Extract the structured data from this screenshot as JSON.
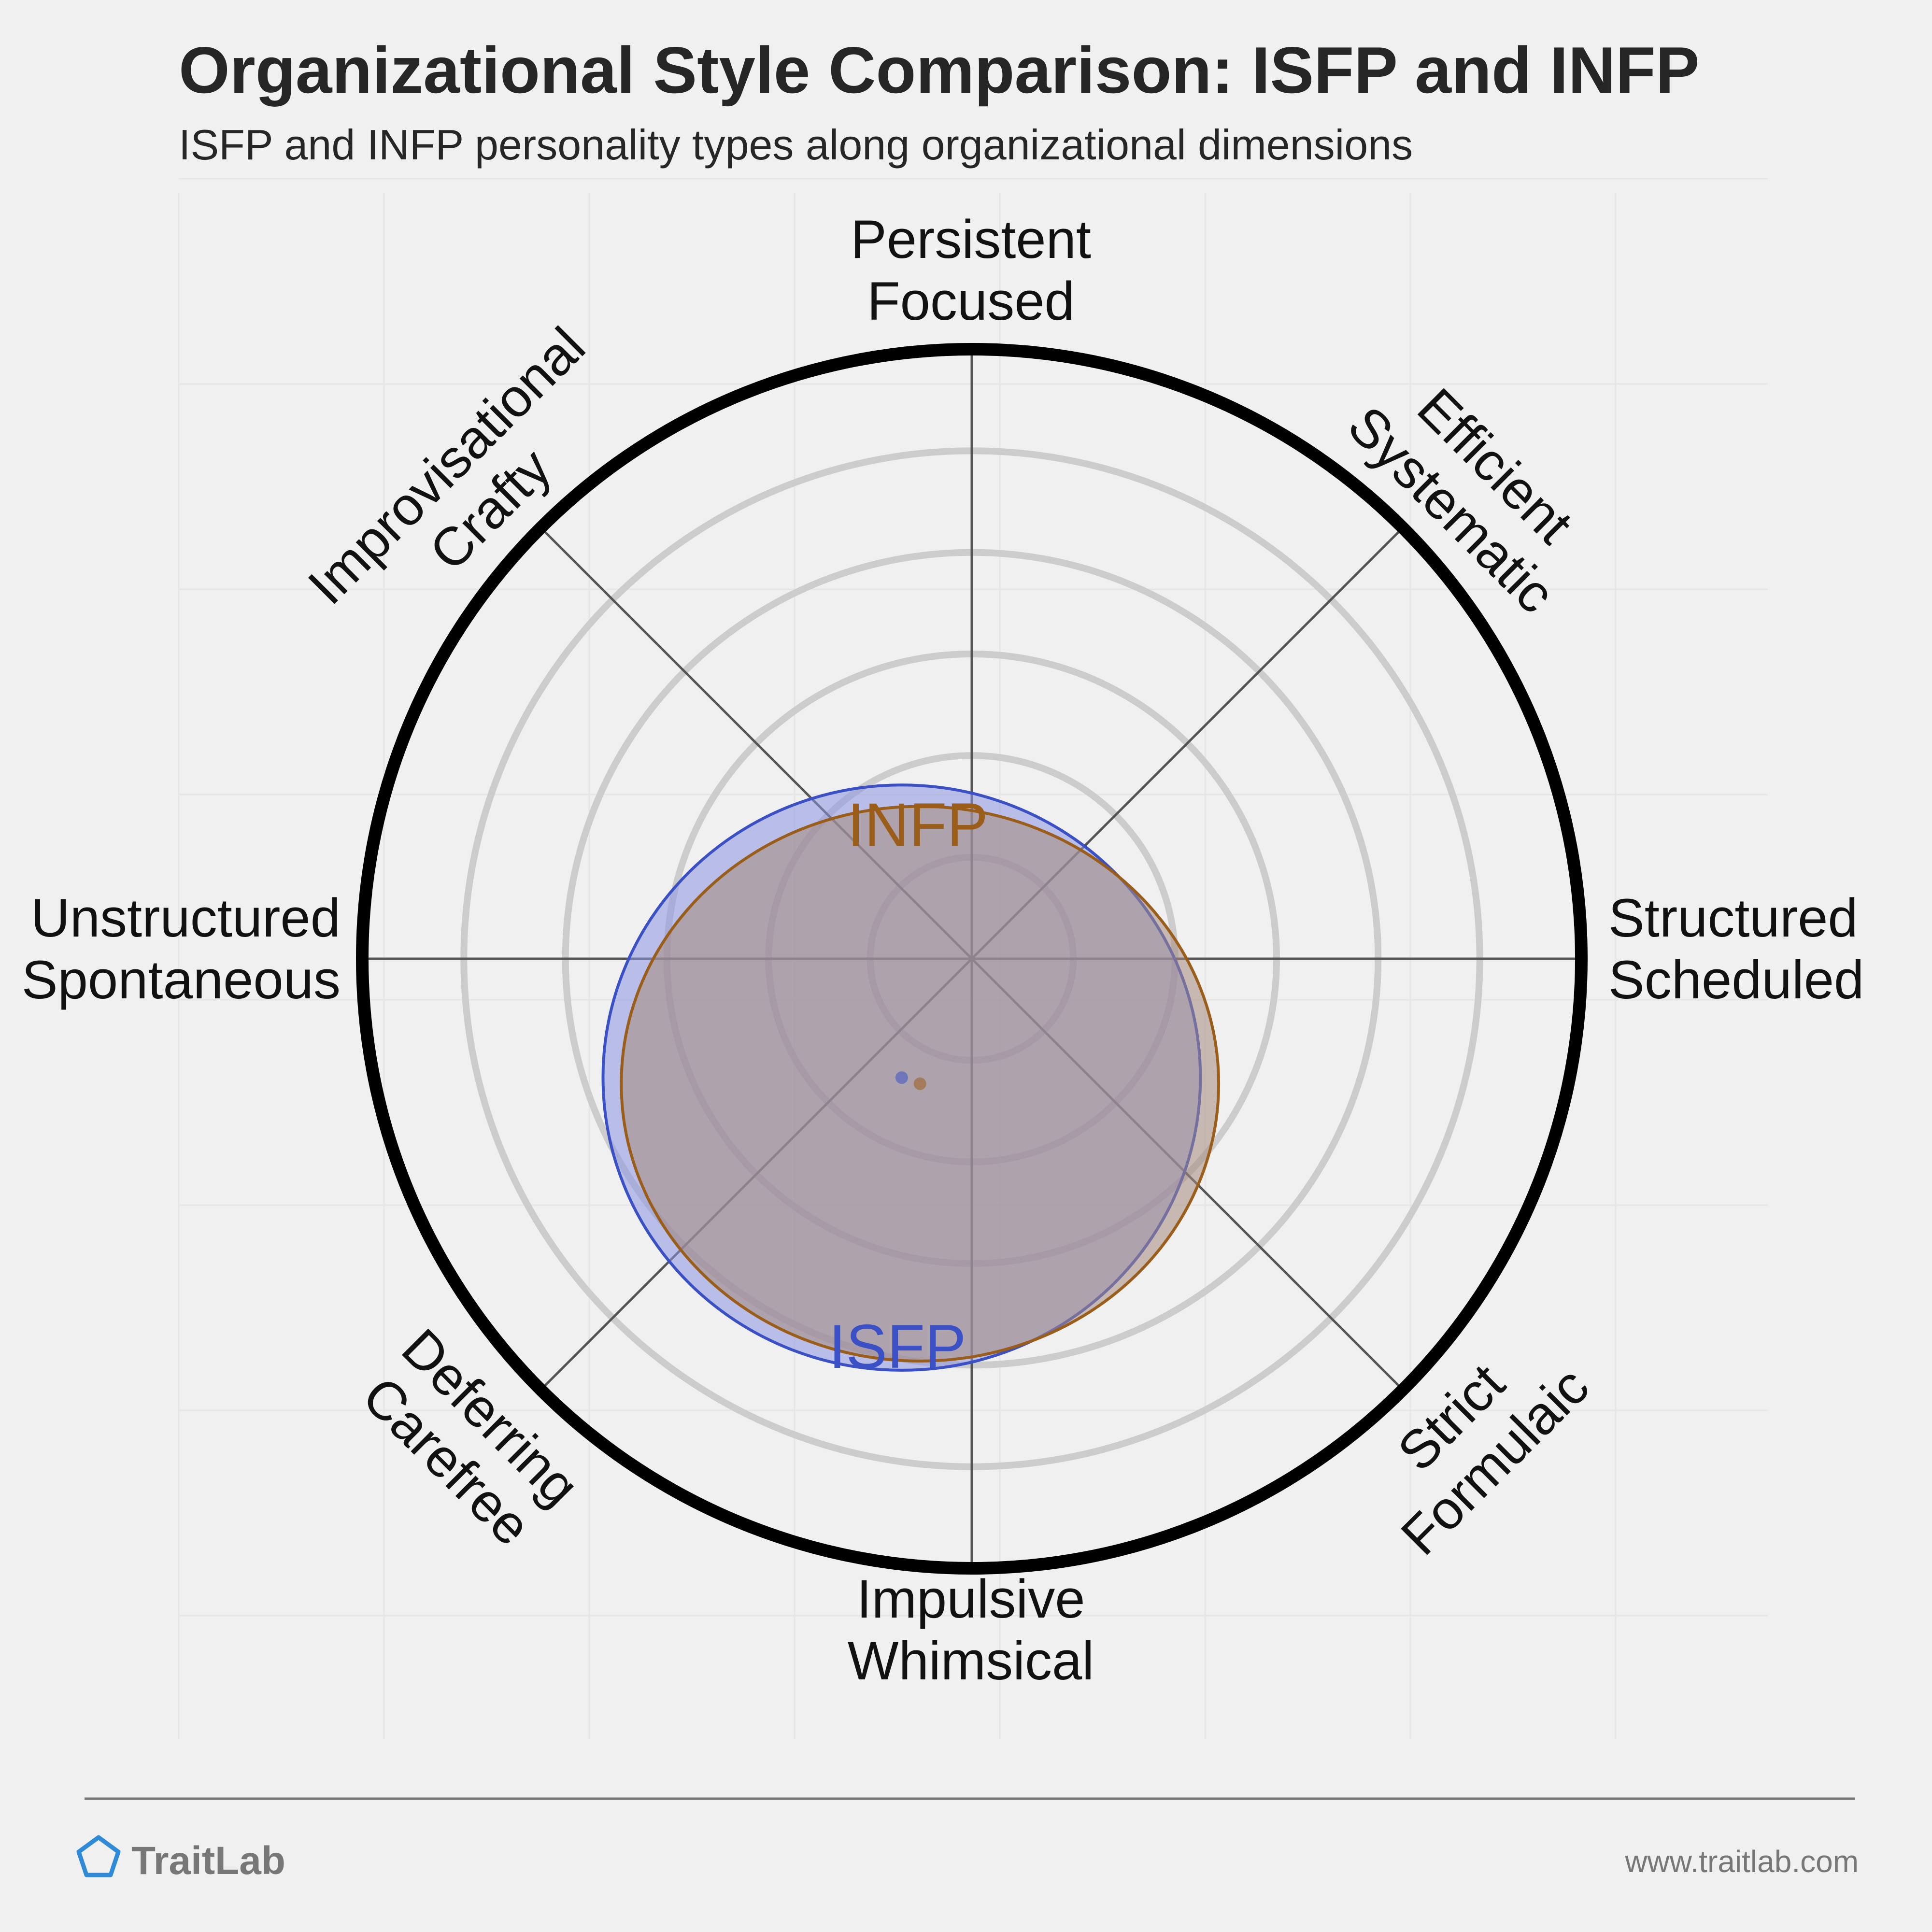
{
  "chart_data": {
    "type": "radar",
    "title": "Organizational Style Comparison: ISFP and INFP",
    "subtitle": "ISFP and INFP personality types along organizational dimensions",
    "axes": [
      {
        "label": [
          "Persistent",
          "Focused"
        ]
      },
      {
        "label": [
          "Efficient",
          "Systematic"
        ]
      },
      {
        "label": [
          "Structured",
          "Scheduled"
        ]
      },
      {
        "label": [
          "Strict",
          "Formulaic"
        ]
      },
      {
        "label": [
          "Impulsive",
          "Whimsical"
        ]
      },
      {
        "label": [
          "Deferring",
          "Carefree"
        ]
      },
      {
        "label": [
          "Unstructured",
          "Spontaneous"
        ]
      },
      {
        "label": [
          "Improvisational",
          "Crafty"
        ]
      }
    ],
    "rings": 6,
    "scale": "Center = 0, outer ring = 100 (units are normalized fractions of the plot radius)",
    "series": [
      {
        "name": "ISFP",
        "color": "#3b50c4",
        "center_x": -0.115,
        "center_y": -0.195,
        "radius_x": 0.49,
        "radius_y": 0.48
      },
      {
        "name": "INFP",
        "color": "#9a5d1a",
        "center_x": -0.085,
        "center_y": -0.205,
        "radius_x": 0.49,
        "radius_y": 0.455
      }
    ]
  },
  "footer": {
    "brand": "TraitLab",
    "url": "www.traitlab.com"
  },
  "colors": {
    "background": "#f0f0f0",
    "isfp": "#3b50c4",
    "infp": "#9a5d1a",
    "blend_fill": "#a89aa8"
  }
}
